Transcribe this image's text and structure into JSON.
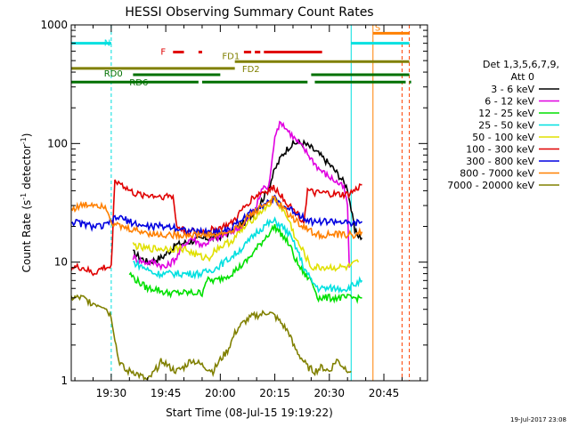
{
  "chart_data": {
    "type": "line",
    "title": "HESSI Observing Summary Count Rates",
    "xlabel": "Start Time (08-Jul-15 19:19:22)",
    "ylabel_main": "Count Rate (s",
    "ylabel_sup1": "-1",
    "ylabel_mid": " detector",
    "ylabel_sup2": "-1",
    "ylabel_end": ")",
    "x_unit": "minutes since 19:19:22",
    "xlim": [
      0,
      98
    ],
    "ylim": [
      1,
      1000
    ],
    "yscale": "log",
    "x_ticks": [
      {
        "x": 11,
        "label": "19:30"
      },
      {
        "x": 26,
        "label": "19:45"
      },
      {
        "x": 41,
        "label": "20:00"
      },
      {
        "x": 56,
        "label": "20:15"
      },
      {
        "x": 71,
        "label": "20:30"
      },
      {
        "x": 86,
        "label": "20:45"
      }
    ],
    "y_ticks": [
      {
        "y": 1,
        "label": "1"
      },
      {
        "y": 10,
        "label": "10"
      },
      {
        "y": 100,
        "label": "100"
      },
      {
        "y": 1000,
        "label": "1000"
      }
    ],
    "legend_title": "Det 1,3,5,6,7,9,",
    "legend_subtitle": "Att 0",
    "series": [
      {
        "name": "3 - 6 keV",
        "color": "#000000",
        "points": [
          [
            17,
            12
          ],
          [
            21,
            10
          ],
          [
            25,
            11
          ],
          [
            29,
            14
          ],
          [
            33,
            15
          ],
          [
            37,
            16
          ],
          [
            40,
            16
          ],
          [
            44,
            18
          ],
          [
            48,
            22
          ],
          [
            51,
            28
          ],
          [
            54,
            40
          ],
          [
            56,
            60
          ],
          [
            58,
            80
          ],
          [
            60,
            95
          ],
          [
            62,
            102
          ],
          [
            64,
            100
          ],
          [
            66,
            92
          ],
          [
            68,
            82
          ],
          [
            70,
            72
          ],
          [
            72,
            62
          ],
          [
            74,
            52
          ],
          [
            76,
            42
          ],
          [
            77,
            28
          ],
          [
            78,
            18
          ],
          [
            80,
            16
          ]
        ]
      },
      {
        "name": "6 - 12 keV",
        "color": "#e000e0",
        "points": [
          [
            17,
            11
          ],
          [
            20,
            10
          ],
          [
            23,
            10
          ],
          [
            26,
            9
          ],
          [
            29,
            11
          ],
          [
            31,
            14
          ],
          [
            33,
            16
          ],
          [
            36,
            14
          ],
          [
            40,
            16
          ],
          [
            44,
            18
          ],
          [
            47,
            20
          ],
          [
            49,
            24
          ],
          [
            51,
            30
          ],
          [
            53,
            45
          ],
          [
            54,
            40
          ],
          [
            55,
            60
          ],
          [
            56,
            120
          ],
          [
            57,
            140
          ],
          [
            58,
            150
          ],
          [
            59,
            135
          ],
          [
            60,
            125
          ],
          [
            62,
            105
          ],
          [
            64,
            90
          ],
          [
            66,
            75
          ],
          [
            68,
            62
          ],
          [
            70,
            55
          ],
          [
            72,
            50
          ],
          [
            74,
            45
          ],
          [
            75,
            42
          ],
          [
            76,
            30
          ],
          [
            76.5,
            9
          ]
        ]
      },
      {
        "name": "12 - 25 keV",
        "color": "#00e000",
        "points": [
          [
            16,
            8
          ],
          [
            18,
            7
          ],
          [
            21,
            6
          ],
          [
            23,
            6
          ],
          [
            26,
            5.5
          ],
          [
            30,
            5.5
          ],
          [
            34,
            5.5
          ],
          [
            36,
            5.5
          ],
          [
            37,
            7
          ],
          [
            40,
            7
          ],
          [
            44,
            8
          ],
          [
            48,
            10
          ],
          [
            51,
            13
          ],
          [
            54,
            17
          ],
          [
            56,
            20
          ],
          [
            58,
            17
          ],
          [
            60,
            14
          ],
          [
            62,
            10
          ],
          [
            64,
            8
          ],
          [
            66,
            7
          ],
          [
            68,
            5
          ],
          [
            72,
            5
          ],
          [
            76,
            5
          ],
          [
            79,
            5
          ],
          [
            80,
            5
          ]
        ]
      },
      {
        "name": "25 - 50 keV",
        "color": "#00e0e0",
        "points": [
          [
            17,
            10
          ],
          [
            20,
            9
          ],
          [
            23,
            8
          ],
          [
            26,
            8
          ],
          [
            29,
            8
          ],
          [
            31,
            8
          ],
          [
            33,
            8
          ],
          [
            36,
            8
          ],
          [
            40,
            9
          ],
          [
            44,
            11
          ],
          [
            48,
            14
          ],
          [
            51,
            18
          ],
          [
            54,
            21
          ],
          [
            56,
            22
          ],
          [
            58,
            20
          ],
          [
            60,
            17
          ],
          [
            62,
            13
          ],
          [
            64,
            9
          ],
          [
            66,
            7
          ],
          [
            68,
            6
          ],
          [
            72,
            6
          ],
          [
            76,
            6
          ],
          [
            80,
            7
          ]
        ]
      },
      {
        "name": "50 - 100 keV",
        "color": "#e0e000",
        "points": [
          [
            17,
            14
          ],
          [
            20,
            13
          ],
          [
            24,
            13
          ],
          [
            28,
            13
          ],
          [
            31,
            13
          ],
          [
            33,
            12
          ],
          [
            36,
            11
          ],
          [
            38,
            11
          ],
          [
            40,
            13
          ],
          [
            44,
            15
          ],
          [
            48,
            20
          ],
          [
            51,
            25
          ],
          [
            54,
            30
          ],
          [
            56,
            34
          ],
          [
            58,
            28
          ],
          [
            60,
            22
          ],
          [
            62,
            15
          ],
          [
            64,
            12
          ],
          [
            66,
            9
          ],
          [
            68,
            9
          ],
          [
            72,
            9
          ],
          [
            76,
            9
          ],
          [
            79,
            10
          ]
        ]
      },
      {
        "name": "100 - 300 keV",
        "color": "#e00000",
        "points": [
          [
            0,
            9
          ],
          [
            3,
            9
          ],
          [
            6,
            8
          ],
          [
            9,
            9
          ],
          [
            11,
            9
          ],
          [
            12,
            50
          ],
          [
            14,
            45
          ],
          [
            16,
            40
          ],
          [
            18,
            37
          ],
          [
            20,
            37
          ],
          [
            24,
            36
          ],
          [
            28,
            36
          ],
          [
            29,
            20
          ],
          [
            32,
            18
          ],
          [
            36,
            18
          ],
          [
            40,
            19
          ],
          [
            44,
            21
          ],
          [
            46,
            25
          ],
          [
            48,
            30
          ],
          [
            50,
            35
          ],
          [
            52,
            38
          ],
          [
            54,
            40
          ],
          [
            56,
            42
          ],
          [
            58,
            36
          ],
          [
            60,
            30
          ],
          [
            62,
            26
          ],
          [
            64,
            22
          ],
          [
            65,
            40
          ],
          [
            67,
            38
          ],
          [
            70,
            38
          ],
          [
            73,
            37
          ],
          [
            76,
            37
          ],
          [
            78,
            40
          ],
          [
            80,
            45
          ]
        ]
      },
      {
        "name": "300 - 800 keV",
        "color": "#0000e0",
        "points": [
          [
            0,
            22
          ],
          [
            3,
            21
          ],
          [
            6,
            20
          ],
          [
            9,
            20
          ],
          [
            11,
            22
          ],
          [
            13,
            24
          ],
          [
            16,
            22
          ],
          [
            20,
            20
          ],
          [
            24,
            20
          ],
          [
            28,
            20
          ],
          [
            30,
            19
          ],
          [
            34,
            18
          ],
          [
            38,
            18
          ],
          [
            40,
            18
          ],
          [
            44,
            19
          ],
          [
            46,
            22
          ],
          [
            48,
            24
          ],
          [
            50,
            27
          ],
          [
            52,
            30
          ],
          [
            54,
            32
          ],
          [
            56,
            34
          ],
          [
            58,
            30
          ],
          [
            60,
            28
          ],
          [
            62,
            26
          ],
          [
            64,
            24
          ],
          [
            66,
            22
          ],
          [
            68,
            22
          ],
          [
            70,
            22
          ],
          [
            72,
            22
          ],
          [
            74,
            22
          ],
          [
            76,
            21
          ],
          [
            78,
            21
          ],
          [
            80,
            22
          ]
        ]
      },
      {
        "name": "800 - 7000 keV",
        "color": "#ff8000",
        "points": [
          [
            0,
            28
          ],
          [
            3,
            30
          ],
          [
            6,
            31
          ],
          [
            9,
            30
          ],
          [
            10,
            28
          ],
          [
            11,
            22
          ],
          [
            13,
            20
          ],
          [
            16,
            19
          ],
          [
            20,
            18
          ],
          [
            24,
            17
          ],
          [
            28,
            17
          ],
          [
            32,
            17
          ],
          [
            36,
            17
          ],
          [
            40,
            17
          ],
          [
            44,
            18
          ],
          [
            46,
            20
          ],
          [
            48,
            23
          ],
          [
            50,
            26
          ],
          [
            52,
            29
          ],
          [
            54,
            32
          ],
          [
            56,
            34
          ],
          [
            58,
            29
          ],
          [
            60,
            25
          ],
          [
            62,
            22
          ],
          [
            64,
            20
          ],
          [
            66,
            18
          ],
          [
            68,
            17
          ],
          [
            70,
            17
          ],
          [
            72,
            17
          ],
          [
            74,
            17
          ],
          [
            76,
            17
          ],
          [
            78,
            17
          ],
          [
            80,
            18
          ]
        ]
      },
      {
        "name": "7000 - 20000 keV",
        "color": "#808000",
        "points": [
          [
            0,
            5
          ],
          [
            3,
            5
          ],
          [
            6,
            4.5
          ],
          [
            9,
            4.3
          ],
          [
            11,
            3.5
          ],
          [
            13,
            1.5
          ],
          [
            15,
            1.2
          ],
          [
            17,
            1.2
          ],
          [
            19,
            1.1
          ],
          [
            21,
            1
          ],
          [
            23,
            1.2
          ],
          [
            25,
            1.5
          ],
          [
            27,
            1.3
          ],
          [
            29,
            1.2
          ],
          [
            31,
            1.3
          ],
          [
            33,
            1.5
          ],
          [
            35,
            1.4
          ],
          [
            37,
            1.3
          ],
          [
            39,
            1.2
          ],
          [
            41,
            1.5
          ],
          [
            43,
            1.8
          ],
          [
            45,
            2.5
          ],
          [
            46,
            2.8
          ],
          [
            48,
            3.2
          ],
          [
            50,
            3.5
          ],
          [
            52,
            3.6
          ],
          [
            54,
            3.8
          ],
          [
            56,
            3.5
          ],
          [
            58,
            3
          ],
          [
            60,
            2.5
          ],
          [
            61,
            2
          ],
          [
            63,
            1.6
          ],
          [
            65,
            1.3
          ],
          [
            67,
            1.2
          ],
          [
            69,
            1.3
          ],
          [
            71,
            1.2
          ],
          [
            73,
            1.5
          ],
          [
            75,
            1.3
          ],
          [
            77,
            1.2
          ]
        ]
      }
    ],
    "state_bars": [
      {
        "label": "N",
        "color": "#00e0e0",
        "y": 700,
        "segments": [
          [
            0,
            11
          ]
        ]
      },
      {
        "label": "S",
        "color": "#ff8000",
        "y": 850,
        "segments": [
          [
            83,
            93
          ]
        ]
      },
      {
        "label": "",
        "color": "#00e0e0",
        "y": 700,
        "segments": [
          [
            77,
            93
          ]
        ]
      },
      {
        "label": "F",
        "color": "#e00000",
        "y": 590,
        "segments": [
          [
            28,
            31
          ],
          [
            35,
            36
          ],
          [
            47.5,
            49.5
          ],
          [
            50.5,
            52
          ],
          [
            53,
            69
          ]
        ]
      },
      {
        "label": "FD1",
        "color": "#808000",
        "y": 490,
        "segments": [
          [
            45,
            93
          ]
        ]
      },
      {
        "label": "FD2",
        "color": "#808000",
        "y": 430,
        "segments": [
          [
            0,
            45
          ]
        ]
      },
      {
        "label": "RD0",
        "color": "#007000",
        "y": 380,
        "segments": [
          [
            17,
            41
          ],
          [
            66,
            93
          ]
        ]
      },
      {
        "label": "RD6",
        "color": "#007000",
        "y": 330,
        "segments": [
          [
            0,
            35
          ],
          [
            36,
            65
          ],
          [
            67,
            92
          ],
          [
            93,
            93.5
          ]
        ]
      }
    ],
    "vertical_markers": [
      {
        "x": 11,
        "color": "#00e0e0",
        "style": "dashed"
      },
      {
        "x": 77,
        "color": "#00e0e0",
        "style": "solid"
      },
      {
        "x": 83,
        "color": "#ff8000",
        "style": "solid"
      },
      {
        "x": 91,
        "color": "#ff4000",
        "style": "dashed"
      },
      {
        "x": 93,
        "color": "#ff4000",
        "style": "dashed"
      }
    ],
    "footer_timestamp": "19-Jul-2017 23:08",
    "grid": false,
    "legend_position": "right"
  }
}
